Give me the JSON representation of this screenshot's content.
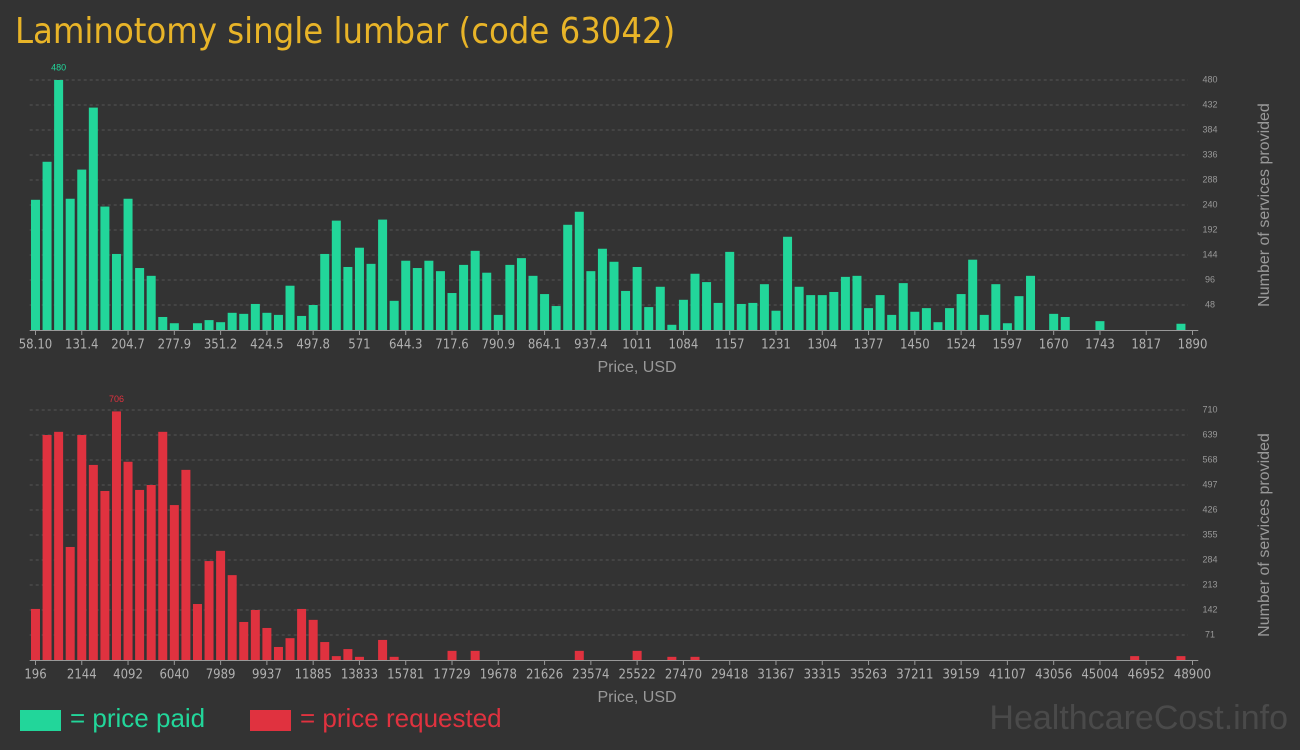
{
  "title": "Laminotomy single lumbar (code 63042)",
  "watermark": "HealthcareCost.info",
  "chart_data": [
    {
      "type": "bar",
      "xlabel": "Price, USD",
      "ylabel": "Number of services provided",
      "categories": [
        "58.10",
        null,
        null,
        null,
        "131.4",
        null,
        null,
        null,
        "204.7",
        null,
        null,
        null,
        "277.9",
        null,
        null,
        null,
        "351.2",
        null,
        null,
        null,
        "424.5",
        null,
        null,
        null,
        "497.8",
        null,
        null,
        null,
        "571",
        null,
        null,
        null,
        "644.3",
        null,
        null,
        null,
        "717.6",
        null,
        null,
        null,
        "790.9",
        null,
        null,
        null,
        "864.1",
        null,
        null,
        null,
        "937.4",
        null,
        null,
        null,
        "1011",
        null,
        null,
        null,
        "1084",
        null,
        null,
        null,
        "1157",
        null,
        null,
        null,
        "1231",
        null,
        null,
        null,
        "1304",
        null,
        null,
        null,
        "1377",
        null,
        null,
        null,
        "1450",
        null,
        null,
        null,
        "1524",
        null,
        null,
        null,
        "1597",
        null,
        null,
        null,
        "1670",
        null,
        null,
        null,
        "1743",
        null,
        null,
        null,
        "1817",
        null,
        null,
        null,
        "1890"
      ],
      "series": [
        {
          "name": "= price paid",
          "color": "#22d69a",
          "values": [
            250,
            323,
            480,
            252,
            308,
            427,
            237,
            146,
            252,
            119,
            104,
            25,
            13,
            0,
            13,
            19,
            15,
            33,
            31,
            50,
            33,
            29,
            85,
            27,
            48,
            146,
            210,
            121,
            158,
            127,
            212,
            56,
            133,
            119,
            133,
            113,
            71,
            125,
            152,
            110,
            29,
            125,
            138,
            104,
            69,
            46,
            202,
            227,
            113,
            156,
            131,
            75,
            121,
            44,
            83,
            10,
            58,
            108,
            92,
            52,
            150,
            50,
            52,
            88,
            37,
            179,
            83,
            67,
            67,
            73,
            102,
            104,
            42,
            67,
            29,
            90,
            35,
            42,
            15,
            42,
            69,
            135,
            29,
            88,
            13,
            65,
            104,
            0,
            31,
            25,
            0,
            0,
            17,
            0,
            0,
            0,
            0,
            0,
            0,
            12,
            0
          ],
          "value_labels": [
            null,
            null,
            "480",
            null,
            null,
            null,
            null,
            null,
            null,
            null,
            null,
            null,
            null,
            null,
            null,
            null,
            null,
            null,
            null,
            null,
            null,
            null,
            null,
            null,
            null,
            null,
            null,
            null,
            null,
            null,
            null,
            null,
            null,
            null,
            null,
            null,
            null,
            null,
            null,
            null,
            null,
            null,
            null,
            null,
            null,
            null,
            null,
            null,
            null,
            null,
            null,
            null,
            null,
            null,
            null,
            null,
            null,
            null,
            null,
            null,
            null,
            null,
            null,
            null,
            null,
            null,
            null,
            null,
            null,
            null,
            null,
            null,
            null,
            null,
            null,
            null,
            null,
            null,
            null,
            null,
            null,
            null,
            null,
            null,
            null,
            null,
            null,
            null,
            null,
            null,
            null,
            null,
            null,
            null,
            null,
            null,
            null,
            null,
            null,
            null,
            null
          ]
        }
      ],
      "ylim": [
        0,
        480
      ],
      "yticks": [
        48,
        96,
        144,
        192,
        240,
        288,
        336,
        384,
        432,
        480
      ],
      "grid": true
    },
    {
      "type": "bar",
      "xlabel": "Price, USD",
      "ylabel": "Number of services provided",
      "categories": [
        "196",
        null,
        null,
        null,
        "2144",
        null,
        null,
        null,
        "4092",
        null,
        null,
        null,
        "6040",
        null,
        null,
        null,
        "7989",
        null,
        null,
        null,
        "9937",
        null,
        null,
        null,
        "11885",
        null,
        null,
        null,
        "13833",
        null,
        null,
        null,
        "15781",
        null,
        null,
        null,
        "17729",
        null,
        null,
        null,
        "19678",
        null,
        null,
        null,
        "21626",
        null,
        null,
        null,
        "23574",
        null,
        null,
        null,
        "25522",
        null,
        null,
        null,
        "27470",
        null,
        null,
        null,
        "29418",
        null,
        null,
        null,
        "31367",
        null,
        null,
        null,
        "33315",
        null,
        null,
        null,
        "35263",
        null,
        null,
        null,
        "37211",
        null,
        null,
        null,
        "39159",
        null,
        null,
        null,
        "41107",
        null,
        null,
        null,
        "43056",
        null,
        null,
        null,
        "45004",
        null,
        null,
        null,
        "46952",
        null,
        null,
        null,
        "48900"
      ],
      "series": [
        {
          "name": "= price requested",
          "color": "#e0323f",
          "values": [
            145,
            639,
            648,
            321,
            639,
            554,
            480,
            706,
            563,
            483,
            497,
            648,
            440,
            540,
            159,
            281,
            310,
            241,
            108,
            142,
            91,
            37,
            62,
            145,
            114,
            51,
            11,
            31,
            9,
            0,
            57,
            9,
            0,
            0,
            0,
            0,
            26,
            0,
            26,
            0,
            0,
            0,
            0,
            0,
            0,
            0,
            0,
            26,
            0,
            0,
            0,
            0,
            26,
            0,
            0,
            9,
            0,
            9,
            0,
            0,
            0,
            0,
            0,
            0,
            0,
            0,
            0,
            0,
            0,
            0,
            0,
            0,
            0,
            0,
            0,
            0,
            0,
            0,
            0,
            0,
            0,
            0,
            0,
            0,
            0,
            0,
            0,
            0,
            0,
            0,
            0,
            0,
            0,
            0,
            0,
            11,
            0,
            0,
            0,
            11,
            0
          ],
          "value_labels": [
            null,
            null,
            null,
            null,
            null,
            null,
            null,
            "706",
            null,
            null,
            null,
            null,
            null,
            null,
            null,
            null,
            null,
            null,
            null,
            null,
            null,
            null,
            null,
            null,
            null,
            null,
            null,
            null,
            null,
            null,
            null,
            null,
            null,
            null,
            null,
            null,
            null,
            null,
            null,
            null,
            null,
            null,
            null,
            null,
            null,
            null,
            null,
            null,
            null,
            null,
            null,
            null,
            null,
            null,
            null,
            null,
            null,
            null,
            null,
            null,
            null,
            null,
            null,
            null,
            null,
            null,
            null,
            null,
            null,
            null,
            null,
            null,
            null,
            null,
            null,
            null,
            null,
            null,
            null,
            null,
            null,
            null,
            null,
            null,
            null,
            null,
            null,
            null,
            null,
            null,
            null,
            null,
            null,
            null,
            null,
            null,
            null,
            null,
            null,
            null,
            null
          ]
        }
      ],
      "ylim": [
        0,
        710
      ],
      "yticks": [
        71,
        142,
        213,
        284,
        355,
        426,
        497,
        568,
        639,
        710
      ],
      "grid": true
    }
  ]
}
